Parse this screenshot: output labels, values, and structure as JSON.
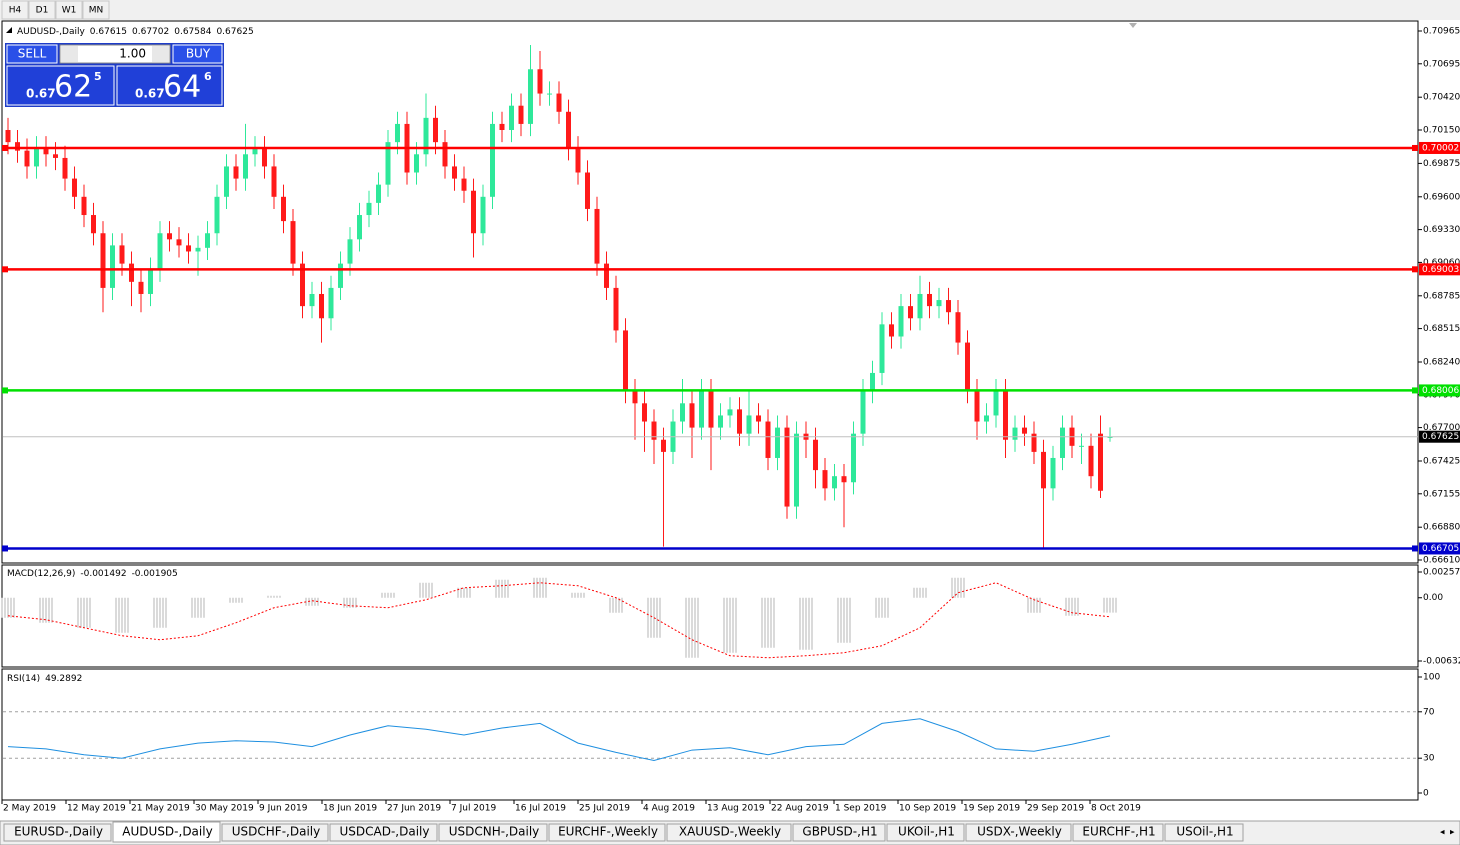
{
  "toolbar": {
    "timeframes": [
      "H4",
      "D1",
      "W1",
      "MN"
    ]
  },
  "trade_panel": {
    "sell_label": "SELL",
    "lot": "1.00",
    "buy_label": "BUY",
    "sell_big": "0.67",
    "sell_pips": "62",
    "sell_frac": "5",
    "buy_big": "0.67",
    "buy_pips": "64",
    "buy_frac": "6"
  },
  "chart_data": [
    {
      "type": "candlestick",
      "title": "AUDUSD-,Daily",
      "bull_color": "#2ee89a",
      "bear_color": "#ff1a1a",
      "ylim": [
        0.6661,
        0.70965
      ],
      "yticks": [
        0.70965,
        0.70695,
        {
          "value": 0.7042,
          "label": "0.70420"
        },
        {
          "value": 0.7015,
          "label": "0.70150"
        },
        0.69875,
        {
          "value": 0.696,
          "label": "0.69600"
        },
        {
          "value": 0.6933,
          "label": "0.69330"
        },
        {
          "value": 0.6906,
          "label": "0.69060"
        },
        0.68785,
        0.68515,
        {
          "value": 0.6824,
          "label": "0.68240"
        },
        {
          "value": 0.6797,
          "label": "0.67970"
        },
        {
          "value": 0.677,
          "label": "0.67700"
        },
        0.67425,
        0.67155,
        {
          "value": 0.6688,
          "label": "0.66880"
        },
        {
          "value": 0.6661,
          "label": "0.66610"
        }
      ],
      "levels": [
        {
          "value": 0.70002,
          "color": "#ff0000"
        },
        {
          "value": 0.69003,
          "color": "#ff0000"
        },
        {
          "value": 0.68006,
          "color": "#00e000"
        },
        {
          "value": 0.66705,
          "color": "#0000cc"
        }
      ],
      "x_labels": [
        "2 May 2019",
        "12 May 2019",
        "21 May 2019",
        "30 May 2019",
        "9 Jun 2019",
        "18 Jun 2019",
        "27 Jun 2019",
        "7 Jul 2019",
        "16 Jul 2019",
        "25 Jul 2019",
        "4 Aug 2019",
        "13 Aug 2019",
        "22 Aug 2019",
        "1 Sep 2019",
        "10 Sep 2019",
        "19 Sep 2019",
        "29 Sep 2019",
        "8 Oct 2019"
      ],
      "candles": [
        [
          0.7015,
          0.7025,
          0.6995,
          0.7005
        ],
        [
          0.7005,
          0.7015,
          0.6988,
          0.6998
        ],
        [
          0.6998,
          0.7008,
          0.6975,
          0.6985
        ],
        [
          0.6985,
          0.701,
          0.6975,
          0.7
        ],
        [
          0.7,
          0.701,
          0.6985,
          0.6995
        ],
        [
          0.6995,
          0.7005,
          0.6982,
          0.6992
        ],
        [
          0.6992,
          0.7002,
          0.6965,
          0.6975
        ],
        [
          0.6975,
          0.6985,
          0.695,
          0.696
        ],
        [
          0.696,
          0.697,
          0.6935,
          0.6945
        ],
        [
          0.6945,
          0.6955,
          0.692,
          0.693
        ],
        [
          0.693,
          0.694,
          0.6865,
          0.6885
        ],
        [
          0.6885,
          0.693,
          0.6875,
          0.692
        ],
        [
          0.692,
          0.693,
          0.6895,
          0.6905
        ],
        [
          0.6905,
          0.6915,
          0.687,
          0.689
        ],
        [
          0.689,
          0.69,
          0.6865,
          0.688
        ],
        [
          0.688,
          0.691,
          0.687,
          0.69
        ],
        [
          0.69,
          0.694,
          0.689,
          0.693
        ],
        [
          0.693,
          0.694,
          0.6915,
          0.6925
        ],
        [
          0.6925,
          0.6935,
          0.691,
          0.692
        ],
        [
          0.692,
          0.693,
          0.6905,
          0.6915
        ],
        [
          0.6915,
          0.6928,
          0.6895,
          0.6918
        ],
        [
          0.6918,
          0.694,
          0.6908,
          0.693
        ],
        [
          0.693,
          0.697,
          0.692,
          0.696
        ],
        [
          0.696,
          0.6995,
          0.695,
          0.6985
        ],
        [
          0.6985,
          0.6995,
          0.6965,
          0.6975
        ],
        [
          0.6975,
          0.702,
          0.6965,
          0.6995
        ],
        [
          0.6995,
          0.701,
          0.6985,
          0.7
        ],
        [
          0.7,
          0.701,
          0.6975,
          0.6985
        ],
        [
          0.6985,
          0.6995,
          0.695,
          0.696
        ],
        [
          0.696,
          0.697,
          0.693,
          0.694
        ],
        [
          0.694,
          0.695,
          0.6895,
          0.6905
        ],
        [
          0.6905,
          0.6915,
          0.686,
          0.687
        ],
        [
          0.687,
          0.689,
          0.686,
          0.688
        ],
        [
          0.688,
          0.689,
          0.684,
          0.686
        ],
        [
          0.686,
          0.6895,
          0.685,
          0.6885
        ],
        [
          0.6885,
          0.6915,
          0.6875,
          0.6905
        ],
        [
          0.6905,
          0.6935,
          0.6895,
          0.6925
        ],
        [
          0.6925,
          0.6955,
          0.6915,
          0.6945
        ],
        [
          0.6945,
          0.6965,
          0.6935,
          0.6955
        ],
        [
          0.6955,
          0.698,
          0.6945,
          0.697
        ],
        [
          0.697,
          0.7015,
          0.696,
          0.7005
        ],
        [
          0.7005,
          0.703,
          0.6995,
          0.702
        ],
        [
          0.702,
          0.703,
          0.697,
          0.698
        ],
        [
          0.698,
          0.7005,
          0.697,
          0.6995
        ],
        [
          0.6995,
          0.7045,
          0.6985,
          0.7025
        ],
        [
          0.7025,
          0.7035,
          0.6995,
          0.7005
        ],
        [
          0.7005,
          0.7015,
          0.6975,
          0.6985
        ],
        [
          0.6985,
          0.6995,
          0.6965,
          0.6975
        ],
        [
          0.6975,
          0.6985,
          0.6955,
          0.6965
        ],
        [
          0.6965,
          0.6975,
          0.691,
          0.693
        ],
        [
          0.693,
          0.697,
          0.692,
          0.696
        ],
        [
          0.696,
          0.703,
          0.695,
          0.702
        ],
        [
          0.702,
          0.703,
          0.7005,
          0.7015
        ],
        [
          0.7015,
          0.7045,
          0.7005,
          0.7035
        ],
        [
          0.7035,
          0.7045,
          0.701,
          0.702
        ],
        [
          0.702,
          0.7085,
          0.701,
          0.7065
        ],
        [
          0.7065,
          0.708,
          0.7035,
          0.7045
        ],
        [
          0.7045,
          0.7055,
          0.7035,
          0.7045
        ],
        [
          0.7045,
          0.7055,
          0.702,
          0.703
        ],
        [
          0.703,
          0.704,
          0.699,
          0.7
        ],
        [
          0.7,
          0.701,
          0.697,
          0.698
        ],
        [
          0.698,
          0.699,
          0.694,
          0.695
        ],
        [
          0.695,
          0.696,
          0.6895,
          0.6905
        ],
        [
          0.6905,
          0.6915,
          0.6875,
          0.6885
        ],
        [
          0.6885,
          0.6895,
          0.684,
          0.685
        ],
        [
          0.685,
          0.686,
          0.679,
          0.68
        ],
        [
          0.68,
          0.681,
          0.676,
          0.679
        ],
        [
          0.679,
          0.68,
          0.675,
          0.6775
        ],
        [
          0.6775,
          0.6785,
          0.674,
          0.676
        ],
        [
          0.676,
          0.677,
          0.6672,
          0.675
        ],
        [
          0.675,
          0.6785,
          0.674,
          0.6775
        ],
        [
          0.6775,
          0.681,
          0.6765,
          0.679
        ],
        [
          0.679,
          0.68,
          0.6745,
          0.677
        ],
        [
          0.677,
          0.681,
          0.676,
          0.68
        ],
        [
          0.68,
          0.681,
          0.6735,
          0.677
        ],
        [
          0.677,
          0.679,
          0.676,
          0.678
        ],
        [
          0.678,
          0.6795,
          0.677,
          0.6785
        ],
        [
          0.6785,
          0.6795,
          0.6755,
          0.6765
        ],
        [
          0.6765,
          0.68,
          0.6755,
          0.678
        ],
        [
          0.678,
          0.679,
          0.6765,
          0.6775
        ],
        [
          0.6775,
          0.6785,
          0.6735,
          0.6745
        ],
        [
          0.6745,
          0.678,
          0.6735,
          0.677
        ],
        [
          0.677,
          0.678,
          0.6695,
          0.6705
        ],
        [
          0.6705,
          0.6775,
          0.6695,
          0.6765
        ],
        [
          0.6765,
          0.6775,
          0.6745,
          0.676
        ],
        [
          0.676,
          0.677,
          0.672,
          0.6735
        ],
        [
          0.6735,
          0.6745,
          0.671,
          0.672
        ],
        [
          0.672,
          0.674,
          0.671,
          0.673
        ],
        [
          0.673,
          0.674,
          0.6688,
          0.6725
        ],
        [
          0.6725,
          0.6775,
          0.6715,
          0.6765
        ],
        [
          0.6765,
          0.681,
          0.6755,
          0.68
        ],
        [
          0.68,
          0.6825,
          0.679,
          0.6815
        ],
        [
          0.6815,
          0.6865,
          0.6805,
          0.6855
        ],
        [
          0.6855,
          0.6865,
          0.6835,
          0.6845
        ],
        [
          0.6845,
          0.688,
          0.6835,
          0.687
        ],
        [
          0.687,
          0.688,
          0.685,
          0.686
        ],
        [
          0.686,
          0.6895,
          0.685,
          0.688
        ],
        [
          0.688,
          0.689,
          0.686,
          0.687
        ],
        [
          0.687,
          0.6885,
          0.686,
          0.6875
        ],
        [
          0.6875,
          0.6885,
          0.6855,
          0.6865
        ],
        [
          0.6865,
          0.6875,
          0.683,
          0.684
        ],
        [
          0.684,
          0.685,
          0.679,
          0.68
        ],
        [
          0.68,
          0.681,
          0.676,
          0.6775
        ],
        [
          0.6775,
          0.679,
          0.6765,
          0.678
        ],
        [
          0.678,
          0.681,
          0.677,
          0.68
        ],
        [
          0.68,
          0.681,
          0.6745,
          0.676
        ],
        [
          0.676,
          0.678,
          0.675,
          0.677
        ],
        [
          0.677,
          0.678,
          0.6755,
          0.6765
        ],
        [
          0.6765,
          0.6775,
          0.674,
          0.675
        ],
        [
          0.675,
          0.676,
          0.667,
          0.672
        ],
        [
          0.672,
          0.6755,
          0.671,
          0.6745
        ],
        [
          0.6745,
          0.678,
          0.6735,
          0.677
        ],
        [
          0.677,
          0.678,
          0.6745,
          0.6755
        ],
        [
          0.6755,
          0.6765,
          0.674,
          0.6755
        ],
        [
          0.6755,
          0.6765,
          0.672,
          0.673
        ],
        [
          0.6765,
          0.678,
          0.6712,
          0.6718
        ],
        [
          0.67615,
          0.67702,
          0.67584,
          0.67625
        ]
      ]
    },
    {
      "type": "macd",
      "title": "MACD(12,26,9)",
      "hist_color": "#b4b4b4",
      "signal_color": "#ff0000",
      "ylim": [
        -0.006326,
        0.002575
      ],
      "yticks": [
        0.002575,
        {
          "value": 0,
          "label": "0.00"
        },
        -0.006326
      ],
      "x": [
        0,
        4,
        8,
        12,
        16,
        20,
        24,
        28,
        32,
        36,
        40,
        44,
        48,
        52,
        56,
        60,
        64,
        68,
        72,
        76,
        80,
        84,
        88,
        92,
        96,
        100,
        104,
        108,
        112,
        116
      ],
      "main": [
        -0.002,
        -0.0025,
        -0.003,
        -0.0035,
        -0.003,
        -0.002,
        -0.0005,
        0.0002,
        -0.0008,
        -0.001,
        0.0005,
        0.0015,
        0.001,
        0.0018,
        0.002,
        0.0005,
        -0.0015,
        -0.004,
        -0.006,
        -0.0055,
        -0.005,
        -0.0052,
        -0.0045,
        -0.002,
        0.001,
        0.002,
        0,
        -0.0015,
        -0.0018,
        -0.001492
      ],
      "signal": [
        -0.0018,
        -0.0022,
        -0.003,
        -0.0038,
        -0.0042,
        -0.0038,
        -0.0025,
        -0.001,
        -0.0003,
        -0.0008,
        -0.001,
        -0.0002,
        0.001,
        0.0012,
        0.0015,
        0.0012,
        0,
        -0.002,
        -0.0042,
        -0.0058,
        -0.006,
        -0.0058,
        -0.0055,
        -0.0048,
        -0.003,
        0.0005,
        0.0015,
        -0.0002,
        -0.0015,
        -0.001905
      ]
    },
    {
      "type": "line",
      "title": "RSI(14)",
      "color": "#1e8fe0",
      "ylim": [
        0,
        100
      ],
      "yticks": [
        100,
        70,
        30,
        0
      ],
      "levels": [
        70,
        30
      ],
      "x": [
        0,
        4,
        8,
        12,
        16,
        20,
        24,
        28,
        32,
        36,
        40,
        44,
        48,
        52,
        56,
        60,
        64,
        68,
        72,
        76,
        80,
        84,
        88,
        92,
        96,
        100,
        104,
        108,
        112,
        116
      ],
      "values": [
        40,
        38,
        33,
        30,
        38,
        43,
        45,
        44,
        40,
        50,
        58,
        55,
        50,
        56,
        60,
        43,
        35,
        28,
        37,
        39,
        33,
        40,
        42,
        60,
        64,
        53,
        38,
        36,
        42,
        49.2892
      ]
    }
  ],
  "tabs": [
    "EURUSD-,Daily",
    "AUDUSD-,Daily",
    "USDCHF-,Daily",
    "USDCAD-,Daily",
    "USDCNH-,Daily",
    "EURCHF-,Weekly",
    "XAUUSD-,Weekly",
    "GBPUSD-,H1",
    "UKOil-,H1",
    "USDX-,Weekly",
    "EURCHF-,H1",
    "USOil-,H1"
  ]
}
